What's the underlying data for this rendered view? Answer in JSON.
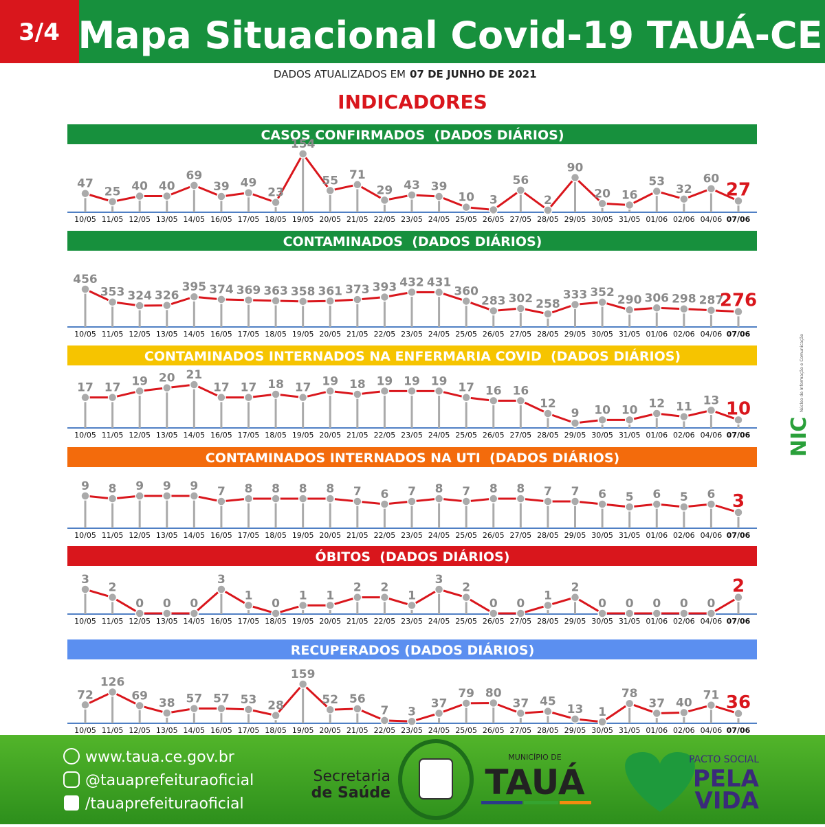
{
  "header": {
    "badge": "3/4",
    "title": "Mapa Situacional Covid-19 TAUÁ-CE",
    "updated": "DADOS ATUALIZADOS EM",
    "date": "07 DE JUNHO DE 2021",
    "section": "INDICADORES"
  },
  "chart_data": [
    {
      "type": "line",
      "title": "CASOS CONFIRMADOS  (DADOS DIÁRIOS)",
      "title_color": "#17903d",
      "color": "#d9161c",
      "categories": [
        "10/05",
        "11/05",
        "12/05",
        "13/05",
        "14/05",
        "16/05",
        "17/05",
        "18/05",
        "19/05",
        "20/05",
        "21/05",
        "22/05",
        "23/05",
        "24/05",
        "25/05",
        "26/05",
        "27/05",
        "28/05",
        "29/05",
        "30/05",
        "31/05",
        "01/06",
        "02/06",
        "04/06",
        "07/06"
      ],
      "values": [
        47,
        25,
        40,
        40,
        69,
        39,
        49,
        23,
        154,
        55,
        71,
        29,
        43,
        39,
        10,
        3,
        56,
        2,
        90,
        20,
        16,
        53,
        32,
        60,
        27
      ]
    },
    {
      "type": "line",
      "title": "CONTAMINADOS  (DADOS DIÁRIOS)",
      "title_color": "#17903d",
      "color": "#d9161c",
      "categories": [
        "10/05",
        "11/05",
        "12/05",
        "13/05",
        "14/05",
        "16/05",
        "17/05",
        "18/05",
        "19/05",
        "20/05",
        "21/05",
        "22/05",
        "23/05",
        "24/05",
        "25/05",
        "26/05",
        "27/05",
        "28/05",
        "29/05",
        "30/05",
        "31/05",
        "01/06",
        "02/06",
        "04/06",
        "07/06"
      ],
      "values": [
        456,
        353,
        324,
        326,
        395,
        374,
        369,
        363,
        358,
        361,
        373,
        393,
        432,
        431,
        360,
        283,
        302,
        258,
        333,
        352,
        290,
        306,
        298,
        287,
        276
      ]
    },
    {
      "type": "line",
      "title": "CONTAMINADOS INTERNADOS NA ENFERMARIA COVID  (DADOS DIÁRIOS)",
      "title_color": "#f6c400",
      "color": "#d9161c",
      "categories": [
        "10/05",
        "11/05",
        "12/05",
        "13/05",
        "14/05",
        "16/05",
        "17/05",
        "18/05",
        "19/05",
        "20/05",
        "21/05",
        "22/05",
        "23/05",
        "24/05",
        "25/05",
        "26/05",
        "27/05",
        "28/05",
        "29/05",
        "30/05",
        "31/05",
        "01/06",
        "02/06",
        "04/06",
        "07/06"
      ],
      "values": [
        17,
        17,
        19,
        20,
        21,
        17,
        17,
        18,
        17,
        19,
        18,
        19,
        19,
        19,
        17,
        16,
        16,
        12,
        9,
        10,
        10,
        12,
        11,
        13,
        10
      ]
    },
    {
      "type": "line",
      "title": "CONTAMINADOS INTERNADOS NA UTI  (DADOS DIÁRIOS)",
      "title_color": "#f36b0c",
      "color": "#d9161c",
      "categories": [
        "10/05",
        "11/05",
        "12/05",
        "13/05",
        "14/05",
        "16/05",
        "17/05",
        "18/05",
        "19/05",
        "20/05",
        "21/05",
        "22/05",
        "23/05",
        "24/05",
        "25/05",
        "26/05",
        "27/05",
        "28/05",
        "29/05",
        "30/05",
        "31/05",
        "01/06",
        "02/06",
        "04/06",
        "07/06"
      ],
      "values": [
        9,
        8,
        9,
        9,
        9,
        7,
        8,
        8,
        8,
        8,
        7,
        6,
        7,
        8,
        7,
        8,
        8,
        7,
        7,
        6,
        5,
        6,
        5,
        6,
        3
      ]
    },
    {
      "type": "line",
      "title": "ÓBITOS  (DADOS DIÁRIOS)",
      "title_color": "#d9161c",
      "color": "#d9161c",
      "categories": [
        "10/05",
        "11/05",
        "12/05",
        "13/05",
        "14/05",
        "16/05",
        "17/05",
        "18/05",
        "19/05",
        "20/05",
        "21/05",
        "22/05",
        "23/05",
        "24/05",
        "25/05",
        "26/05",
        "27/05",
        "28/05",
        "29/05",
        "30/05",
        "31/05",
        "01/06",
        "02/06",
        "04/06",
        "07/06"
      ],
      "values": [
        3,
        2,
        0,
        0,
        0,
        3,
        1,
        0,
        1,
        1,
        2,
        2,
        1,
        3,
        2,
        0,
        0,
        1,
        2,
        0,
        0,
        0,
        0,
        0,
        2
      ]
    },
    {
      "type": "line",
      "title": "RECUPERADOS (DADOS DIÁRIOS)",
      "title_color": "#5b8ff0",
      "color": "#d9161c",
      "categories": [
        "10/05",
        "11/05",
        "12/05",
        "13/05",
        "14/05",
        "16/05",
        "17/05",
        "18/05",
        "19/05",
        "20/05",
        "21/05",
        "22/05",
        "23/05",
        "24/05",
        "25/05",
        "26/05",
        "27/05",
        "28/05",
        "29/05",
        "30/05",
        "31/05",
        "01/06",
        "02/06",
        "04/06",
        "07/06"
      ],
      "values": [
        72,
        126,
        69,
        38,
        57,
        57,
        53,
        28,
        159,
        52,
        56,
        7,
        3,
        37,
        79,
        80,
        37,
        45,
        13,
        1,
        78,
        37,
        40,
        71,
        36
      ]
    }
  ],
  "footer": {
    "website": "www.taua.ce.gov.br",
    "instagram": "@tauaprefeituraoficial",
    "facebook": "/tauaprefeituraoficial",
    "secretaria_1": "Secretaria",
    "secretaria_2": "de Saúde",
    "municipio_label": "MUNICÍPIO DE",
    "municipio": "TAUÁ",
    "pacto_1": "PACTO SOCIAL",
    "pacto_2": "PELA",
    "pacto_3": "VIDA",
    "nic": "NIC",
    "nic_sub": "Núcleo de Informação e Comunicação"
  }
}
